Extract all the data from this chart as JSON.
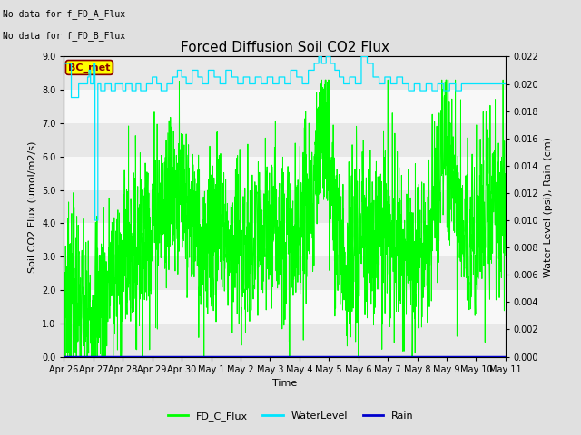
{
  "title": "Forced Diffusion Soil CO2 Flux",
  "ylabel_left": "Soil CO2 Flux (umol/m2/s)",
  "ylabel_right": "Water Level (psi), Rain (cm)",
  "xlabel": "Time",
  "ylim_left": [
    0.0,
    9.0
  ],
  "ylim_right": [
    0.0,
    0.022
  ],
  "yticks_left": [
    0.0,
    1.0,
    2.0,
    3.0,
    4.0,
    5.0,
    6.0,
    7.0,
    8.0,
    9.0
  ],
  "yticks_right": [
    0.0,
    0.002,
    0.004,
    0.006,
    0.008,
    0.01,
    0.012,
    0.014,
    0.016,
    0.018,
    0.02,
    0.022
  ],
  "no_data_text1": "No data for f_FD_A_Flux",
  "no_data_text2": "No data for f_FD_B_Flux",
  "bc_met_label": "BC_met",
  "legend_labels": [
    "FD_C_Flux",
    "WaterLevel",
    "Rain"
  ],
  "flux_color": "#00ff00",
  "water_color": "#00e5ff",
  "rain_color": "#0000cd",
  "bg_color": "#e0e0e0",
  "plot_bg_color": "#f0f0f0",
  "band_colors": [
    "#e8e8e8",
    "#f8f8f8"
  ],
  "title_fontsize": 11,
  "axis_label_fontsize": 8,
  "tick_fontsize": 7,
  "annot_fontsize": 7,
  "legend_fontsize": 8,
  "x_tick_labels": [
    "Apr 26",
    "Apr 27",
    "Apr 28",
    "Apr 29",
    "Apr 30",
    "May 1",
    "May 2",
    "May 3",
    "May 4",
    "May 5",
    "May 6",
    "May 7",
    "May 8",
    "May 9",
    "May 10",
    "May 11"
  ],
  "total_days": 15
}
